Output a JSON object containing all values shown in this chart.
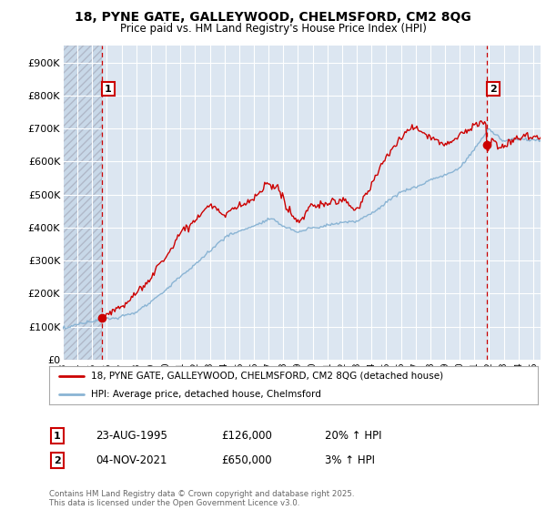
{
  "title_line1": "18, PYNE GATE, GALLEYWOOD, CHELMSFORD, CM2 8QG",
  "title_line2": "Price paid vs. HM Land Registry's House Price Index (HPI)",
  "ylim": [
    0,
    950000
  ],
  "yticks": [
    0,
    100000,
    200000,
    300000,
    400000,
    500000,
    600000,
    700000,
    800000,
    900000
  ],
  "ytick_labels": [
    "£0",
    "£100K",
    "£200K",
    "£300K",
    "£400K",
    "£500K",
    "£600K",
    "£700K",
    "£800K",
    "£900K"
  ],
  "xlim_start": 1993.0,
  "xlim_end": 2025.5,
  "xticks": [
    1993,
    1994,
    1995,
    1996,
    1997,
    1998,
    1999,
    2000,
    2001,
    2002,
    2003,
    2004,
    2005,
    2006,
    2007,
    2008,
    2009,
    2010,
    2011,
    2012,
    2013,
    2014,
    2015,
    2016,
    2017,
    2018,
    2019,
    2020,
    2021,
    2022,
    2023,
    2024,
    2025
  ],
  "background_color": "#dce6f1",
  "hatch_region_end_year": 1995.65,
  "vline1_x": 1995.65,
  "vline2_x": 2021.85,
  "marker1_x": 1995.65,
  "marker1_y": 126000,
  "marker2_x": 2021.85,
  "marker2_y": 650000,
  "marker_color": "#cc0000",
  "marker_size": 7,
  "line_color_property": "#cc0000",
  "line_color_hpi": "#8ab4d4",
  "legend_label_property": "18, PYNE GATE, GALLEYWOOD, CHELMSFORD, CM2 8QG (detached house)",
  "legend_label_hpi": "HPI: Average price, detached house, Chelmsford",
  "annotation1_label": "1",
  "annotation1_date": "23-AUG-1995",
  "annotation1_price": "£126,000",
  "annotation1_hpi": "20% ↑ HPI",
  "annotation2_label": "2",
  "annotation2_date": "04-NOV-2021",
  "annotation2_price": "£650,000",
  "annotation2_hpi": "3% ↑ HPI",
  "footer_text": "Contains HM Land Registry data © Crown copyright and database right 2025.\nThis data is licensed under the Open Government Licence v3.0.",
  "grid_color": "#ffffff",
  "vline_color": "#cc0000",
  "box_color": "#cc0000"
}
